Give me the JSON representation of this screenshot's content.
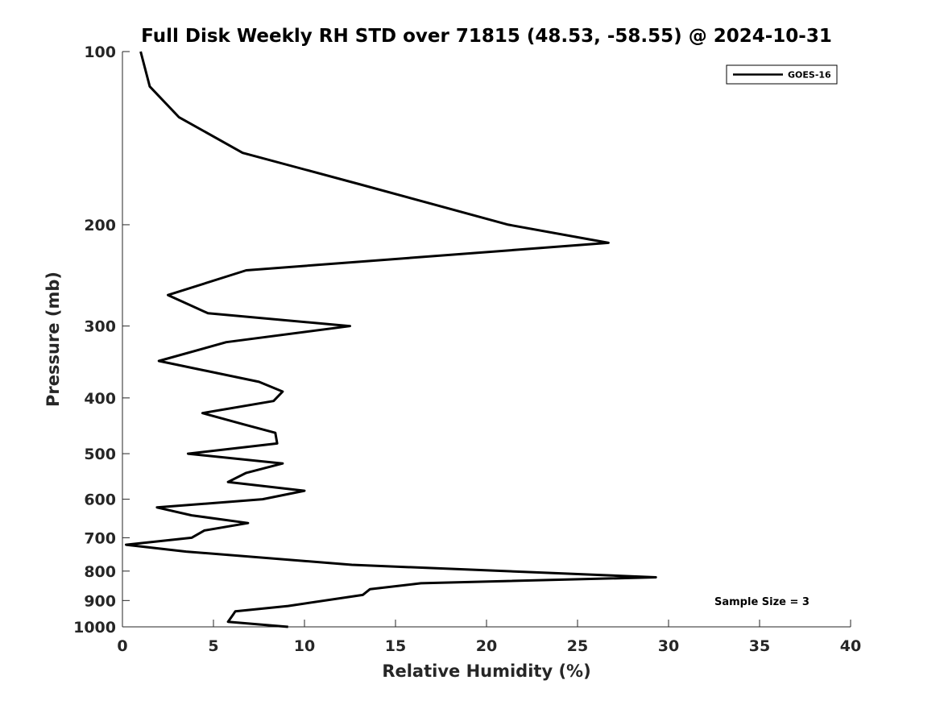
{
  "chart_data": {
    "type": "line",
    "title": "Full Disk Weekly RH STD over 71815 (48.53, -58.55) @ 2024-10-31",
    "xlabel": "Relative Humidity (%)",
    "ylabel": "Pressure (mb)",
    "xlim": [
      0,
      40
    ],
    "ylim": [
      100,
      1000
    ],
    "yscale": "log",
    "x_ticks": [
      "0",
      "5",
      "10",
      "15",
      "20",
      "25",
      "30",
      "35",
      "40"
    ],
    "x_tick_values": [
      0,
      5,
      10,
      15,
      20,
      25,
      30,
      35,
      40
    ],
    "y_ticks": [
      "100",
      "200",
      "300",
      "400",
      "500",
      "600",
      "700",
      "800",
      "900",
      "1000"
    ],
    "y_tick_values": [
      100,
      200,
      300,
      400,
      500,
      600,
      700,
      800,
      900,
      1000
    ],
    "grid": false,
    "legend_position": "top-right",
    "series": [
      {
        "name": "GOES-16",
        "color": "#000000",
        "x": [
          1.0,
          1.5,
          3.1,
          6.6,
          13.0,
          21.2,
          26.7,
          6.8,
          2.5,
          4.7,
          12.5,
          5.7,
          2.0,
          7.5,
          8.8,
          8.3,
          4.4,
          6.7,
          8.4,
          8.5,
          3.6,
          8.8,
          6.8,
          5.8,
          10.0,
          7.7,
          1.9,
          3.8,
          6.9,
          4.5,
          3.8,
          0.2,
          3.5,
          12.6,
          29.3,
          16.4,
          13.6,
          13.2,
          9.1,
          6.2,
          6.1,
          5.8,
          9.1
        ],
        "y": [
          100,
          115,
          130,
          150,
          170,
          200,
          215,
          240,
          265,
          285,
          300,
          320,
          345,
          375,
          390,
          405,
          425,
          445,
          460,
          480,
          500,
          520,
          540,
          560,
          580,
          600,
          620,
          640,
          660,
          680,
          700,
          720,
          740,
          780,
          820,
          840,
          860,
          880,
          920,
          940,
          950,
          980,
          1000
        ]
      }
    ],
    "annotations": [
      "Sample Size = 3"
    ]
  }
}
